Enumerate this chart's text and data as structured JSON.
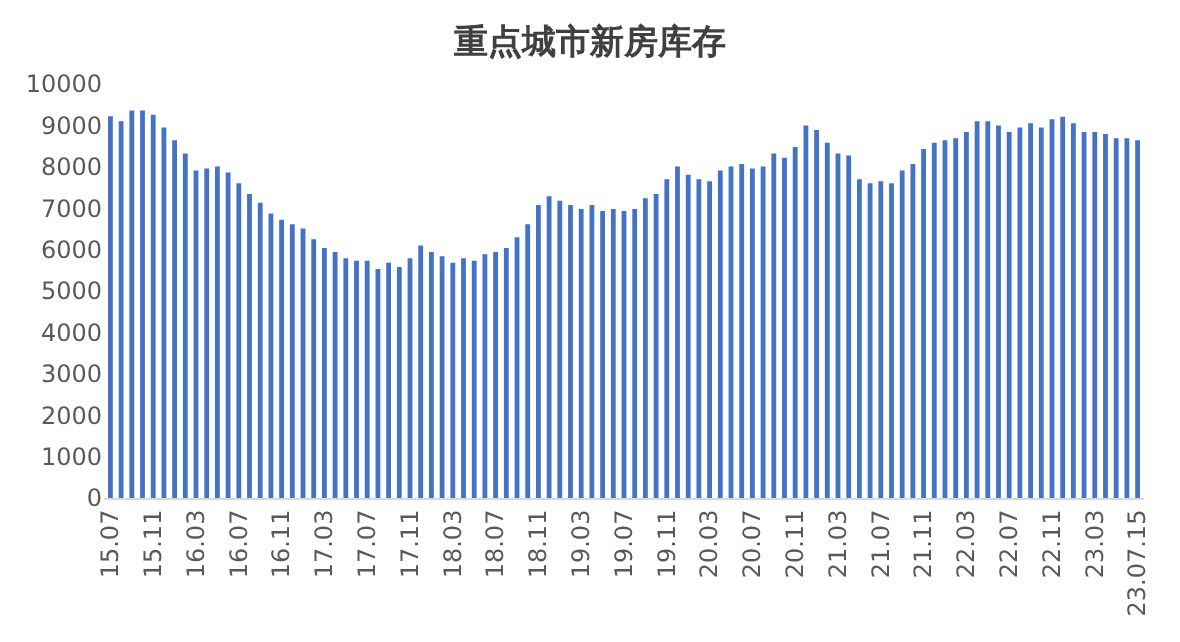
{
  "chart_data": {
    "type": "bar",
    "title": "重点城市新房库存",
    "categories": [
      "15.07",
      null,
      null,
      null,
      "15.11",
      null,
      null,
      null,
      "16.03",
      null,
      null,
      null,
      "16.07",
      null,
      null,
      null,
      "16.11",
      null,
      null,
      null,
      "17.03",
      null,
      null,
      null,
      "17.07",
      null,
      null,
      null,
      "17.11",
      null,
      null,
      null,
      "18.03",
      null,
      null,
      null,
      "18.07",
      null,
      null,
      null,
      "18.11",
      null,
      null,
      null,
      "19.03",
      null,
      null,
      null,
      "19.07",
      null,
      null,
      null,
      "19.11",
      null,
      null,
      null,
      "20.03",
      null,
      null,
      null,
      "20.07",
      null,
      null,
      null,
      "20.11",
      null,
      null,
      null,
      "21.03",
      null,
      null,
      null,
      "21.07",
      null,
      null,
      null,
      "21.11",
      null,
      null,
      null,
      "22.03",
      null,
      null,
      null,
      "22.07",
      null,
      null,
      null,
      "22.11",
      null,
      null,
      null,
      "23.03",
      null,
      null,
      null,
      "23.07.15"
    ],
    "values": [
      9220,
      9100,
      9360,
      9360,
      9260,
      8950,
      8640,
      8320,
      7910,
      7960,
      8010,
      7860,
      7600,
      7340,
      7130,
      6870,
      6720,
      6610,
      6510,
      6250,
      6040,
      5940,
      5790,
      5730,
      5730,
      5530,
      5680,
      5580,
      5790,
      6100,
      5940,
      5840,
      5680,
      5790,
      5730,
      5890,
      5940,
      6040,
      6300,
      6610,
      7080,
      7290,
      7180,
      7080,
      6980,
      7080,
      6930,
      6980,
      6930,
      6980,
      7240,
      7340,
      7700,
      8010,
      7810,
      7700,
      7650,
      7910,
      8010,
      8070,
      7960,
      8010,
      8320,
      8220,
      8480,
      9000,
      8890,
      8580,
      8320,
      8270,
      7700,
      7600,
      7650,
      7600,
      7910,
      8070,
      8430,
      8580,
      8640,
      8690,
      8840,
      9100,
      9100,
      9000,
      8840,
      8950,
      9050,
      8950,
      9150,
      9210,
      9050,
      8840,
      8840,
      8790,
      8690,
      8690,
      8640
    ],
    "color": "#4472c4",
    "ylim": [
      0,
      10000
    ],
    "yticks": [
      0,
      1000,
      2000,
      3000,
      4000,
      5000,
      6000,
      7000,
      8000,
      9000,
      10000
    ],
    "grid": false,
    "legend": false
  }
}
